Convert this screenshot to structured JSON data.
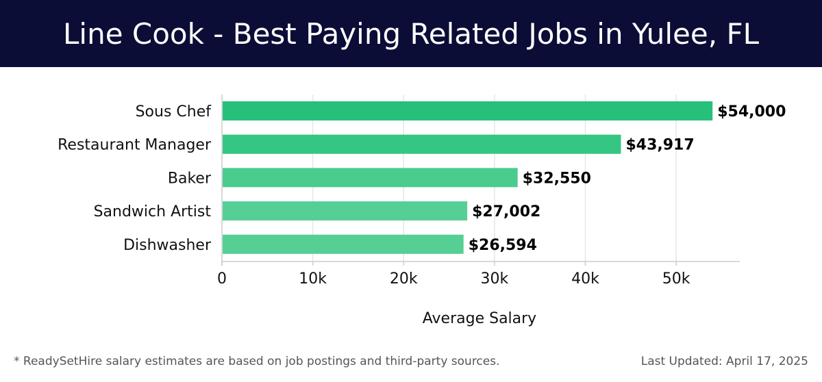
{
  "header": {
    "title": "Line Cook - Best Paying Related Jobs in Yulee, FL"
  },
  "chart_data": {
    "type": "bar",
    "orientation": "horizontal",
    "categories": [
      "Sous Chef",
      "Restaurant Manager",
      "Baker",
      "Sandwich Artist",
      "Dishwasher"
    ],
    "values": [
      54000,
      43917,
      32550,
      27002,
      26594
    ],
    "value_labels": [
      "$54,000",
      "$43,917",
      "$32,550",
      "$27,002",
      "$26,594"
    ],
    "bar_colors": [
      "#27c07a",
      "#35c683",
      "#4acc8e",
      "#56cf95",
      "#56cf95"
    ],
    "xlabel": "Average Salary",
    "ylabel": "",
    "xlim": [
      0,
      57000
    ],
    "xticks": [
      0,
      10000,
      20000,
      30000,
      40000,
      50000
    ],
    "xtick_labels": [
      "0",
      "10k",
      "20k",
      "30k",
      "40k",
      "50k"
    ],
    "grid": "vertical"
  },
  "footer": {
    "note": "* ReadySetHire salary estimates are based on job postings and third-party sources.",
    "updated": "Last Updated: April 17, 2025"
  },
  "colors": {
    "header_bg": "#0c0d36",
    "grid": "#e6e6e6",
    "axis": "#cccccc"
  }
}
